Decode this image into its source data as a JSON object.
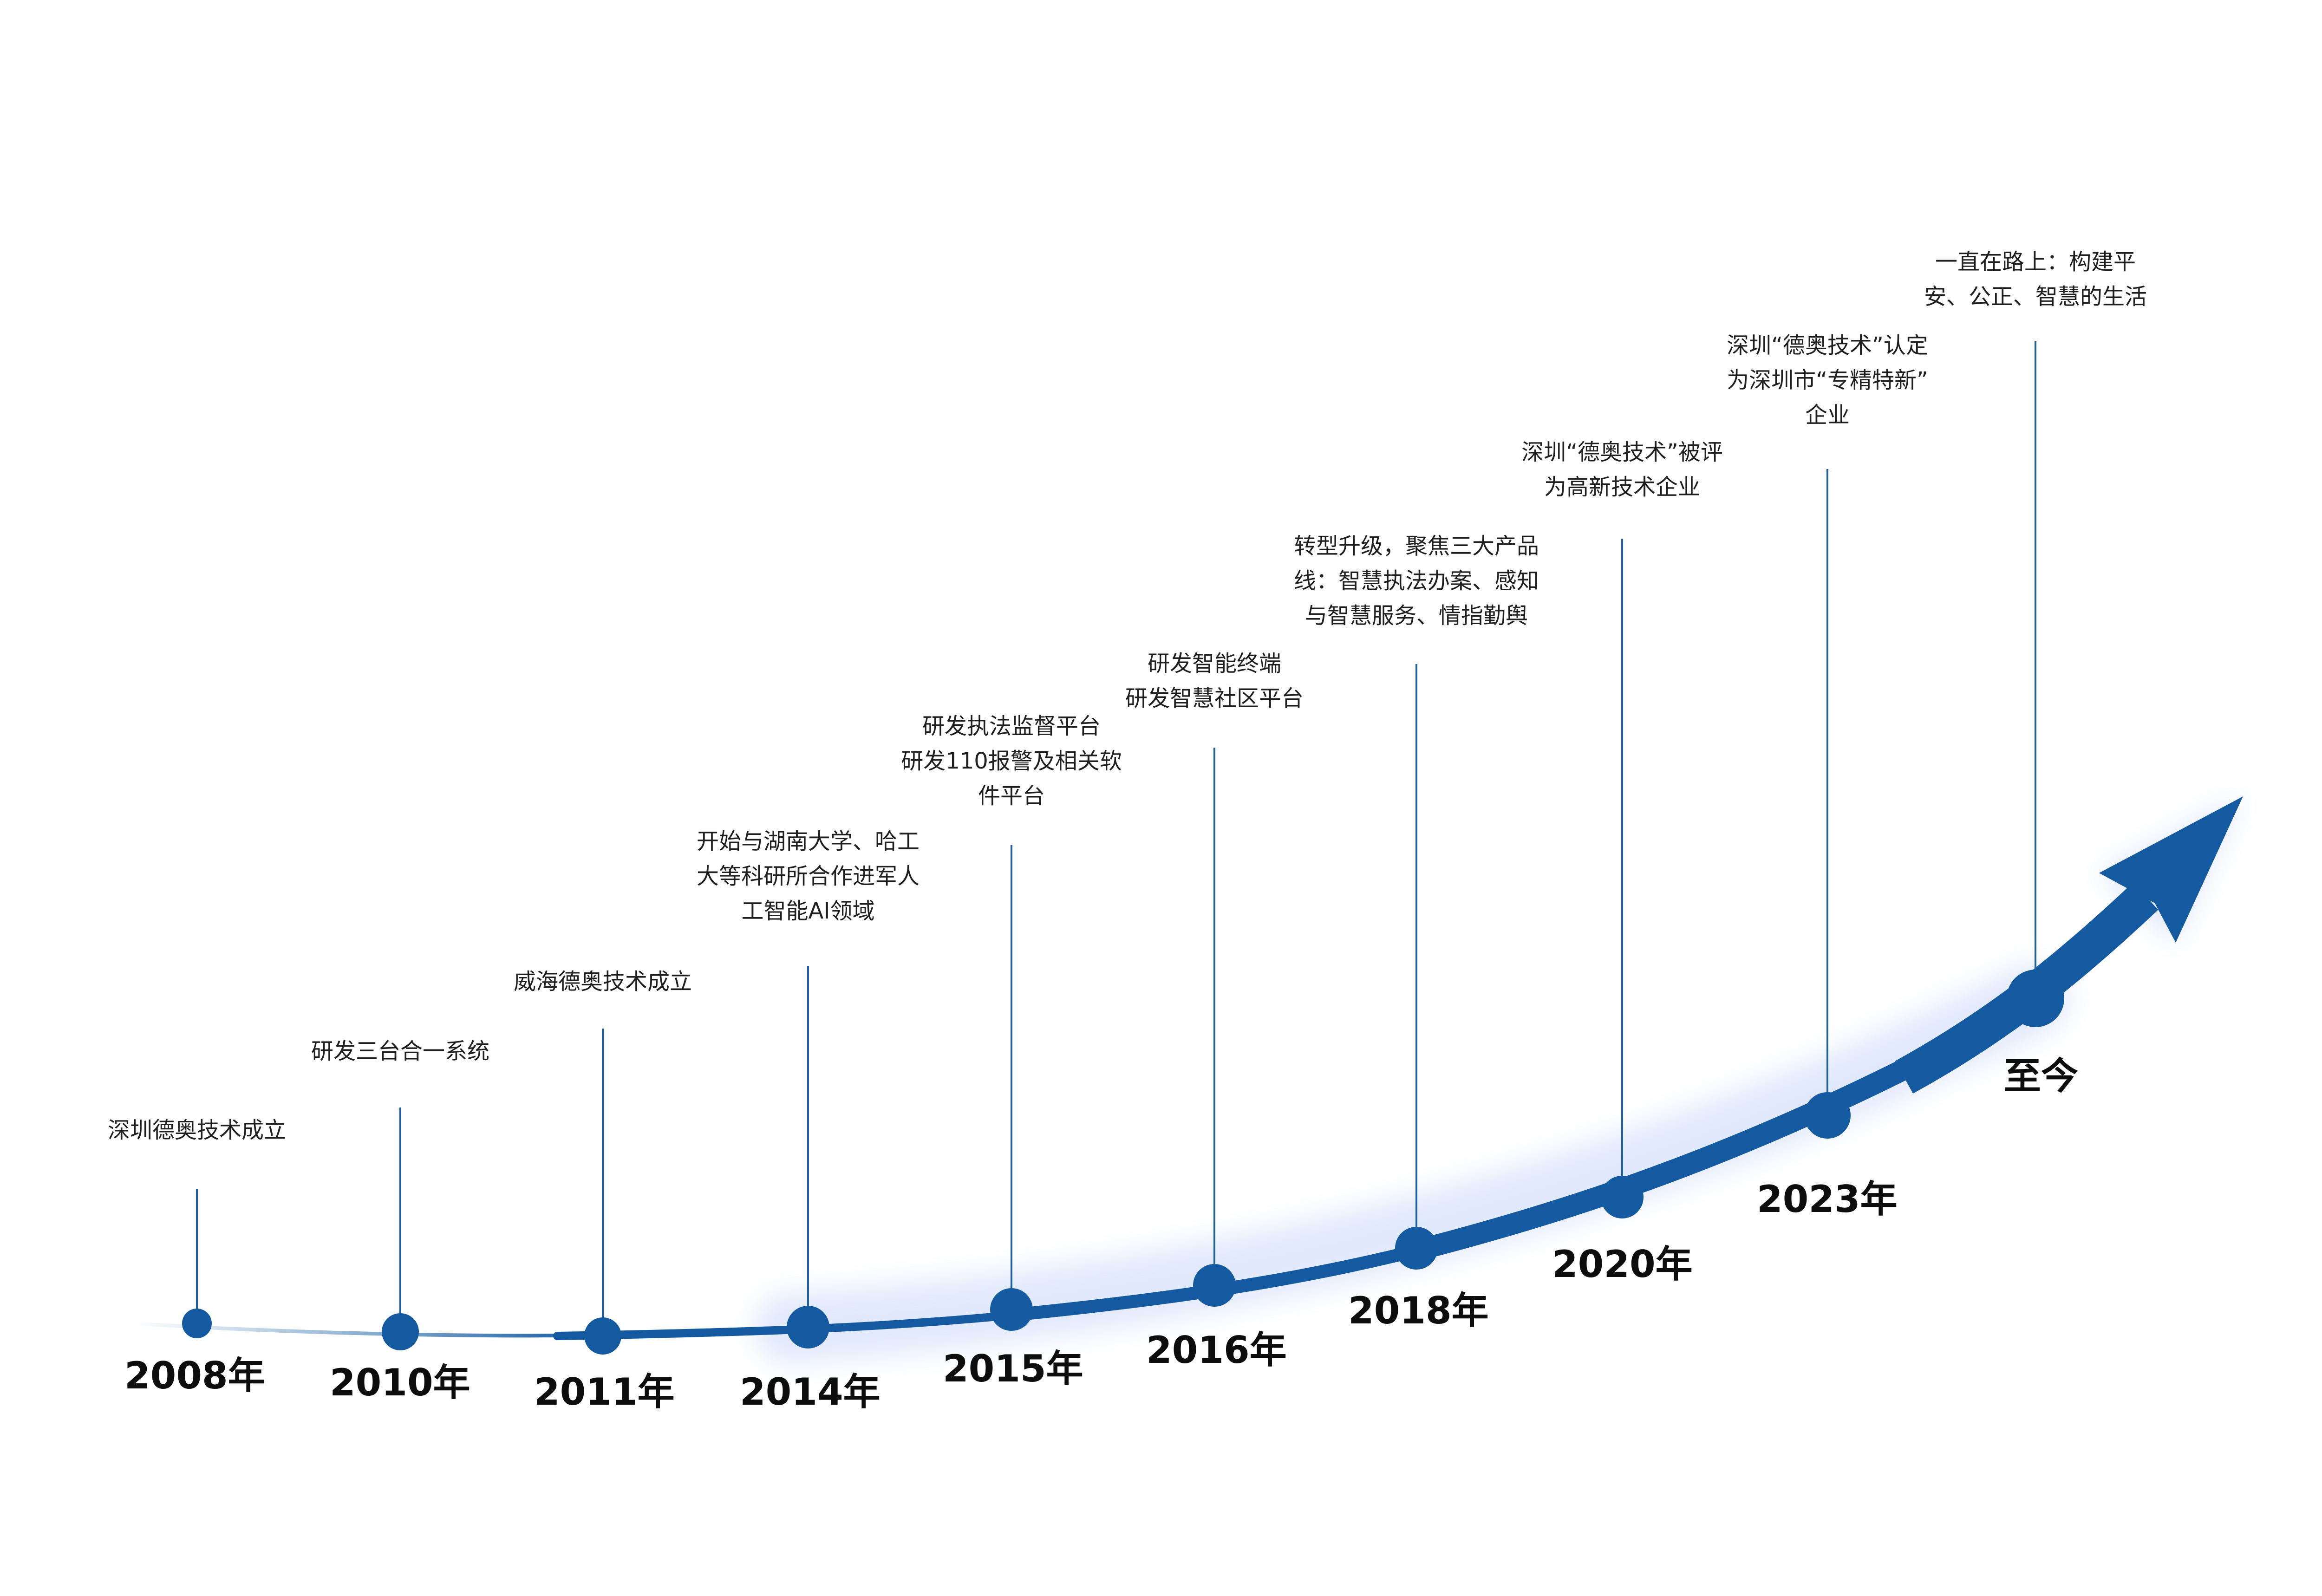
{
  "milestones": [
    {
      "year": "2008年",
      "lines": [
        "深圳德奥技术成立"
      ]
    },
    {
      "year": "2010年",
      "lines": [
        "研发三台合一系统"
      ]
    },
    {
      "year": "2011年",
      "lines": [
        "威海德奥技术成立"
      ]
    },
    {
      "year": "2014年",
      "lines": [
        "开始与湖南大学、哈工",
        "大等科研所合作进军人",
        "工智能AI领域"
      ]
    },
    {
      "year": "2015年",
      "lines": [
        "研发执法监督平台",
        "研发110报警及相关软",
        "件平台"
      ]
    },
    {
      "year": "2016年",
      "lines": [
        "研发智能终端",
        "研发智慧社区平台"
      ]
    },
    {
      "year": "2018年",
      "lines": [
        "转型升级，聚焦三大产品",
        "线：智慧执法办案、感知",
        "与智慧服务、情指勤舆"
      ]
    },
    {
      "year": "2020年",
      "lines": [
        "深圳“德奥技术”被评",
        "为高新技术企业"
      ]
    },
    {
      "year": "2023年",
      "lines": [
        "深圳“德奥技术”认定",
        "为深圳市“专精特新”",
        "企业"
      ]
    },
    {
      "year": "至今",
      "lines": [
        "一直在路上：构建平",
        "安、公正、智慧的生活"
      ]
    }
  ],
  "colors": {
    "curve": "#135aa0",
    "leader": "#1f5fa8",
    "glow": "#dbe5fb",
    "text": "#1f1f1f",
    "year": "#0d0d0d"
  }
}
